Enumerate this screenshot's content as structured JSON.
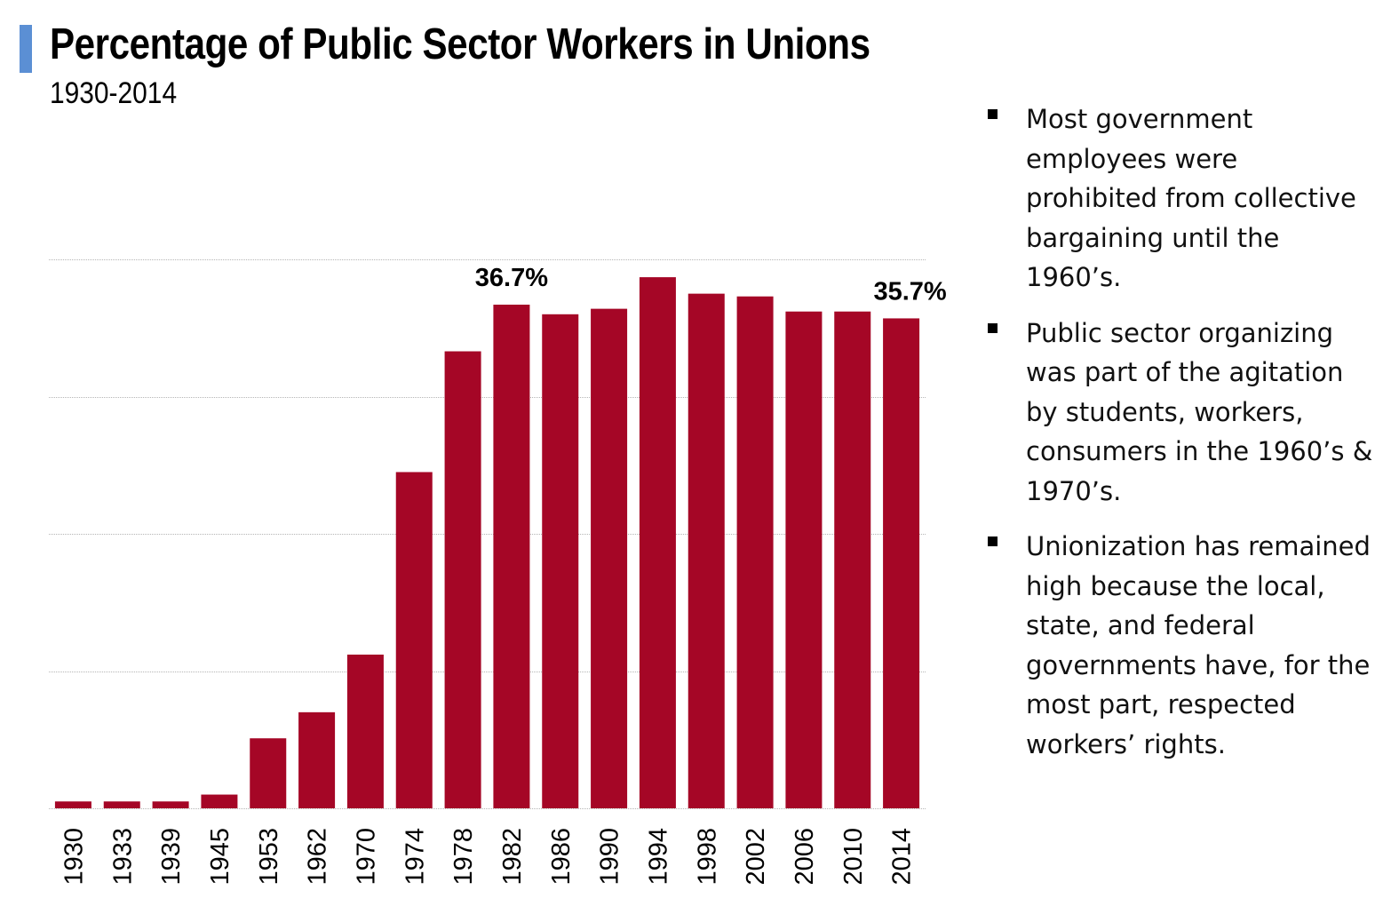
{
  "header": {
    "title": "Percentage of Public Sector Workers in Unions",
    "subtitle": "1930-2014"
  },
  "bullets": [
    {
      "text": "Most government employees were prohibited from collective bargaining until the 1960’s."
    },
    {
      "text": "Public sector organizing was part of the agitation by students, workers, consumers in the 1960’s & 1970’s."
    },
    {
      "text": "Unionization has remained high because the local, state, and federal governments have, for the most part, respected workers’ rights."
    }
  ],
  "colors": {
    "bar": "#a50626",
    "accent": "#5b8fd4",
    "grid": "#b5b5b5"
  },
  "chart_data": {
    "type": "bar",
    "categories": [
      "1930",
      "1933",
      "1939",
      "1945",
      "1953",
      "1962",
      "1970",
      "1974",
      "1978",
      "1982",
      "1986",
      "1990",
      "1994",
      "1998",
      "2002",
      "2006",
      "2010",
      "2014"
    ],
    "values": [
      0.5,
      0.5,
      0.5,
      1.0,
      5.1,
      7.0,
      11.2,
      24.5,
      33.3,
      36.7,
      36.0,
      36.4,
      38.7,
      37.5,
      37.3,
      36.2,
      36.2,
      35.7
    ],
    "data_labels": [
      {
        "category": "1982",
        "text": "36.7%"
      },
      {
        "category": "2014",
        "text": "35.7%"
      }
    ],
    "ylim": [
      0,
      40
    ],
    "gridlines": [
      10,
      20,
      30,
      40
    ],
    "grid": true,
    "title": "",
    "xlabel": "",
    "ylabel": ""
  }
}
